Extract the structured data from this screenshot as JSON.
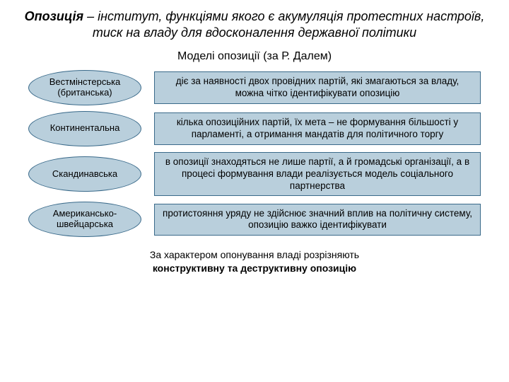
{
  "colors": {
    "shape_fill": "#b9cfdc",
    "shape_border": "#3a6a8a",
    "background": "#ffffff",
    "text": "#000000"
  },
  "title": {
    "term": "Опозиція",
    "definition": " – інститут, функціями якого є акумуляція протестних настроїв, тиск на владу для вдосконалення державної політики"
  },
  "subtitle": "Моделі опозиції (за Р. Далем)",
  "models": [
    {
      "name": "Вестмінстерська (британська)",
      "desc": "діє за наявності двох провідних партій, які змагаються за владу, можна чітко ідентифікувати опозицію"
    },
    {
      "name": "Континентальна",
      "desc": "кілька опозиційних партій, їх мета – не формування більшості у парламенті, а отримання мандатів для політичного торгу"
    },
    {
      "name": "Скандинавська",
      "desc": "в опозиції знаходяться не лише партії, а й громадські організації, а в процесі формування влади реалізується модель соціального партнерства"
    },
    {
      "name": "Американсько-швейцарська",
      "desc": "протистояння уряду не здійснює значний вплив на політичну систему, опозицію важко ідентифікувати"
    }
  ],
  "footer": {
    "line1": "За характером опонування владі розрізняють",
    "line2": "конструктивну та деструктивну опозицію"
  },
  "layout": {
    "oval_width": 160,
    "oval_height": 50,
    "row_gap": 8,
    "font_title": 18,
    "font_subtitle": 16,
    "font_body": 13.5,
    "font_footer": 14
  }
}
